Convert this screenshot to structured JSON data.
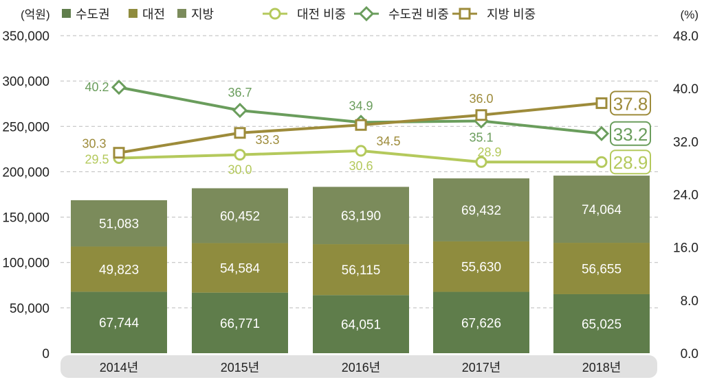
{
  "chart_data": {
    "type": "bar+line",
    "categories": [
      "2014년",
      "2015년",
      "2016년",
      "2017년",
      "2018년"
    ],
    "y_left_unit": "(억원)",
    "y_right_unit": "(%)",
    "ylim_left": [
      0,
      350000
    ],
    "ylim_right": [
      0,
      48
    ],
    "y_left_ticks": [
      "0",
      "50,000",
      "100,000",
      "150,000",
      "200,000",
      "250,000",
      "300,000",
      "350,000"
    ],
    "y_right_ticks": [
      "0.0",
      "8.0",
      "16.0",
      "24.0",
      "32.0",
      "40.0",
      "48.0"
    ],
    "grid": true,
    "legend_placement": "top",
    "bars": [
      {
        "name": "수도권",
        "color": "#5f7d4b",
        "values": [
          67744,
          66771,
          64051,
          67626,
          65025
        ],
        "labels": [
          "67,744",
          "66,771",
          "64,051",
          "67,626",
          "65,025"
        ]
      },
      {
        "name": "대전",
        "color": "#8f8c3e",
        "values": [
          49823,
          54584,
          56115,
          55630,
          56655
        ],
        "labels": [
          "49,823",
          "54,584",
          "56,115",
          "55,630",
          "56,655"
        ]
      },
      {
        "name": "지방",
        "color": "#7b8b5b",
        "values": [
          51083,
          60452,
          63190,
          69432,
          74064
        ],
        "labels": [
          "51,083",
          "60,452",
          "63,190",
          "69,432",
          "74,064"
        ]
      }
    ],
    "lines": [
      {
        "name": "대전 비중",
        "color": "#b4c95c",
        "marker": "circle",
        "values": [
          29.5,
          30.0,
          30.6,
          28.9,
          28.9
        ],
        "labels": [
          "29.5",
          "30.0",
          "30.6",
          "28.9",
          "28.9"
        ]
      },
      {
        "name": "수도권 비중",
        "color": "#6a9d5c",
        "marker": "diamond",
        "values": [
          40.2,
          36.7,
          34.9,
          35.1,
          33.2
        ],
        "labels": [
          "40.2",
          "36.7",
          "34.9",
          "35.1",
          "33.2"
        ]
      },
      {
        "name": "지방 비중",
        "color": "#9d8b3a",
        "marker": "square",
        "values": [
          30.3,
          33.3,
          34.5,
          36.0,
          37.8
        ],
        "labels": [
          "30.3",
          "33.3",
          "34.5",
          "36.0",
          "37.8"
        ]
      }
    ]
  }
}
